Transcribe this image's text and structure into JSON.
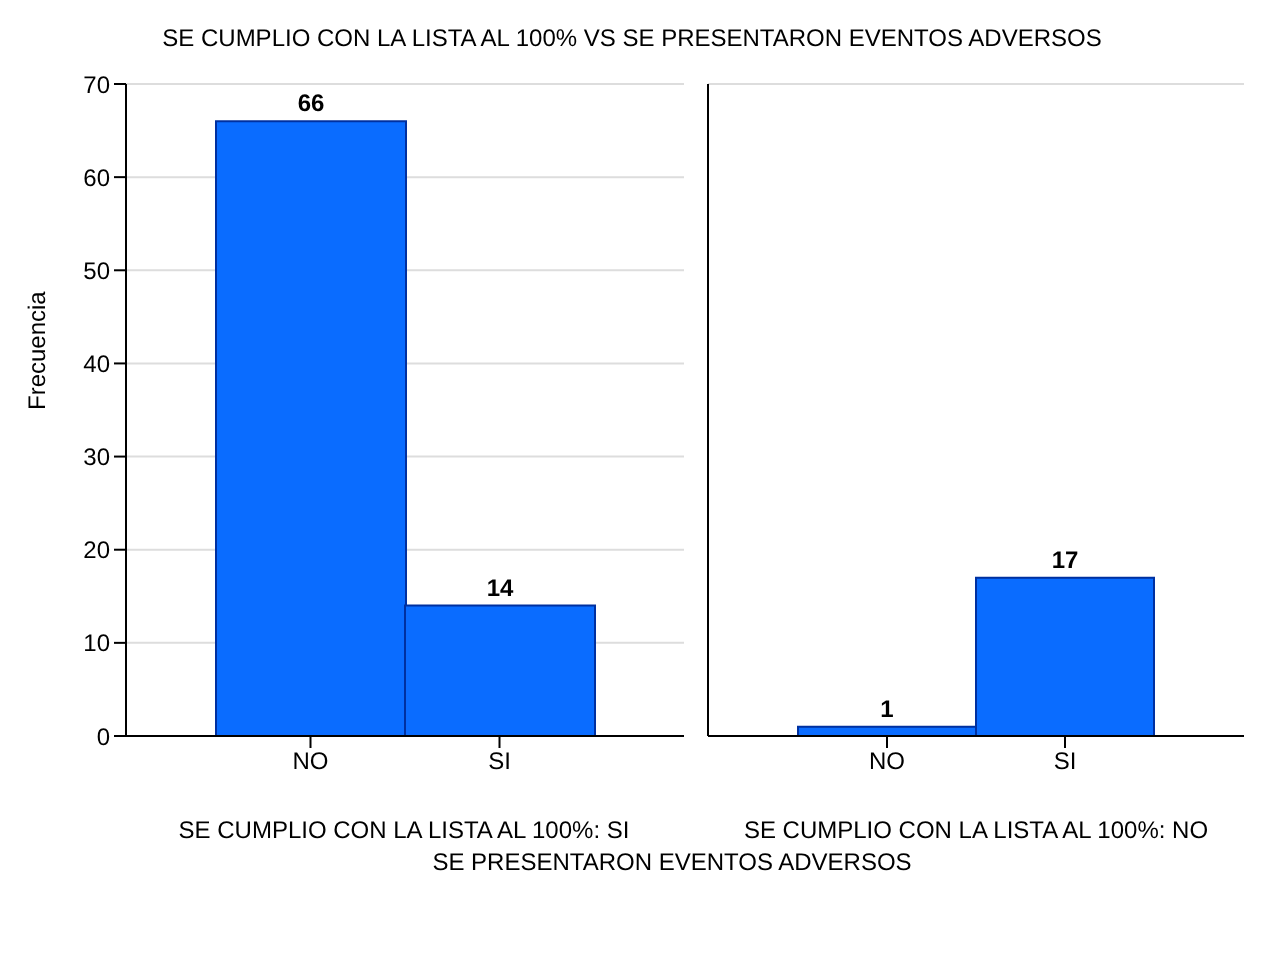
{
  "chart_data": [
    {
      "type": "bar",
      "title": "SE CUMPLIO CON LA LISTA AL 100% VS SE PRESENTARON EVENTOS ADVERSOS",
      "ylabel": "Frecuencia",
      "xlabel": "SE CUMPLIO CON LA LISTA AL 100%: SI",
      "annotations": [
        "SE PRESENTARON EVENTOS ADVERSOS"
      ],
      "categories": [
        "NO",
        "SI"
      ],
      "values": [
        66,
        14
      ],
      "color": "#0a6cff",
      "ylim": [
        0,
        70
      ],
      "yticks": [
        0,
        10,
        20,
        30,
        40,
        50,
        60,
        70
      ],
      "grid": "y",
      "data_labels": true
    },
    {
      "type": "bar",
      "xlabel": "SE CUMPLIO CON LA LISTA AL 100%: NO",
      "categories": [
        "NO",
        "SI"
      ],
      "values": [
        1,
        17
      ],
      "color": "#0a6cff",
      "ylim": [
        0,
        70
      ],
      "yticks": [
        0,
        10,
        20,
        30,
        40,
        50,
        60,
        70
      ],
      "grid": "y",
      "data_labels": true,
      "tick_labels": "x"
    }
  ]
}
